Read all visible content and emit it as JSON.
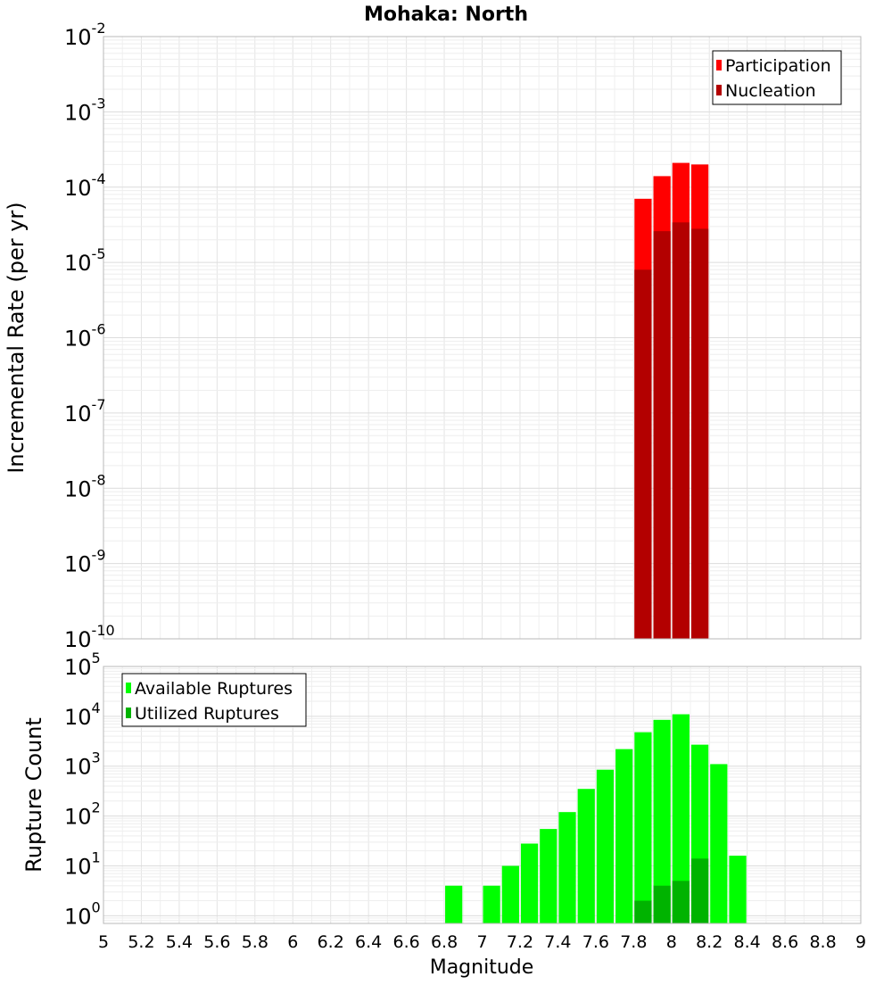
{
  "chart_data": [
    {
      "type": "bar",
      "title": "Mohaka: North",
      "xlabel": "",
      "ylabel": "Incremental Rate (per yr)",
      "yscale": "log",
      "ylim": [
        1e-10,
        0.01
      ],
      "y_ticks": [
        {
          "base": "10",
          "exp": "-10"
        },
        {
          "base": "10",
          "exp": "-9"
        },
        {
          "base": "10",
          "exp": "-8"
        },
        {
          "base": "10",
          "exp": "-7"
        },
        {
          "base": "10",
          "exp": "-6"
        },
        {
          "base": "10",
          "exp": "-5"
        },
        {
          "base": "10",
          "exp": "-4"
        },
        {
          "base": "10",
          "exp": "-3"
        },
        {
          "base": "10",
          "exp": "-2"
        }
      ],
      "xlim": [
        5,
        9
      ],
      "grid": true,
      "legend_position": "top-right",
      "legend": [
        "Participation",
        "Nucleation"
      ],
      "series": [
        {
          "name": "Participation",
          "color": "#ff0000",
          "x": [
            7.85,
            7.95,
            8.05,
            8.15
          ],
          "values": [
            7e-05,
            0.00014,
            0.00021,
            0.0002
          ]
        },
        {
          "name": "Nucleation",
          "color": "#b30000",
          "x": [
            7.85,
            7.95,
            8.05,
            8.15
          ],
          "values": [
            8e-06,
            2.6e-05,
            3.4e-05,
            2.8e-05
          ]
        }
      ]
    },
    {
      "type": "bar",
      "title": "",
      "xlabel": "Magnitude",
      "ylabel": "Rupture Count",
      "yscale": "log",
      "ylim": [
        0.7,
        100000
      ],
      "y_ticks": [
        {
          "base": "10",
          "exp": "0",
          "value": 1
        },
        {
          "base": "10",
          "exp": "1",
          "value": 10
        },
        {
          "base": "10",
          "exp": "2",
          "value": 100
        },
        {
          "base": "10",
          "exp": "3",
          "value": 1000
        },
        {
          "base": "10",
          "exp": "4",
          "value": 10000
        },
        {
          "base": "10",
          "exp": "5",
          "value": 100000
        }
      ],
      "xlim": [
        5,
        9
      ],
      "x_ticks": [
        "5",
        "5.2",
        "5.4",
        "5.6",
        "5.8",
        "6",
        "6.2",
        "6.4",
        "6.6",
        "6.8",
        "7",
        "7.2",
        "7.4",
        "7.6",
        "7.8",
        "8",
        "8.2",
        "8.4",
        "8.6",
        "8.8",
        "9"
      ],
      "grid": true,
      "legend_position": "top-left",
      "legend": [
        "Available Ruptures",
        "Utilized Ruptures"
      ],
      "series": [
        {
          "name": "Available Ruptures",
          "color": "#00ff00",
          "x": [
            6.85,
            7.05,
            7.15,
            7.25,
            7.35,
            7.45,
            7.55,
            7.65,
            7.75,
            7.85,
            7.95,
            8.05,
            8.15,
            8.25,
            8.35
          ],
          "values": [
            4,
            4,
            10,
            28,
            55,
            120,
            350,
            850,
            2200,
            4800,
            8500,
            11000,
            2700,
            1100,
            16
          ]
        },
        {
          "name": "Utilized Ruptures",
          "color": "#00b300",
          "x": [
            7.85,
            7.95,
            8.05,
            8.15
          ],
          "values": [
            2,
            4,
            5,
            14
          ]
        }
      ]
    }
  ]
}
